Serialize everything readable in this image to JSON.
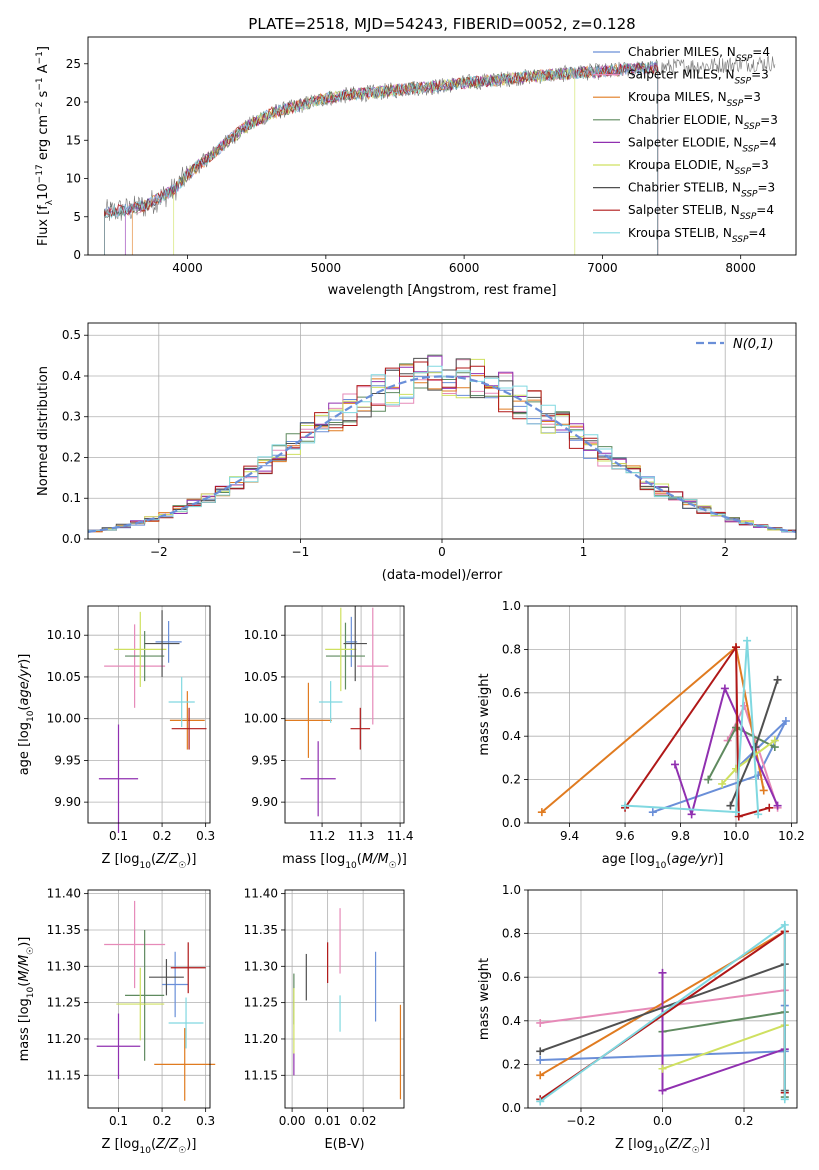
{
  "figure_title": "PLATE=2518, MJD=54243, FIBERID=0052, z=0.128",
  "model_names": [
    "Chabrier MILES",
    "Salpeter MILES",
    "Kroupa MILES",
    "Chabrier ELODIE",
    "Salpeter ELODIE",
    "Kroupa ELODIE",
    "Chabrier STELIB",
    "Salpeter STELIB",
    "Kroupa STELIB"
  ],
  "model_colors": [
    "#6a8fd8",
    "#e68ab8",
    "#e07b20",
    "#5f8a5f",
    "#9030b0",
    "#cfe060",
    "#505050",
    "#b01818",
    "#80d8e0"
  ],
  "n_ssp": [
    4,
    3,
    3,
    3,
    4,
    3,
    3,
    4,
    4
  ],
  "chart_data": [
    {
      "id": "spectrum",
      "type": "line",
      "title": "PLATE=2518, MJD=54243, FIBERID=0052, z=0.128",
      "xlabel": "wavelength [Angstrom, rest frame]",
      "ylabel": "Flux [f_λ 10^-17 erg cm^-2 s^-1 A^-1]",
      "xlim": [
        3280,
        8400
      ],
      "ylim": [
        0,
        28.5
      ],
      "xticks": [
        4000,
        5000,
        6000,
        7000,
        8000
      ],
      "yticks": [
        0,
        5,
        10,
        15,
        20,
        25
      ],
      "grid": false,
      "legend_position": "top-right",
      "legend": [
        "Chabrier MILES, N_SSP=4",
        "Salpeter MILES, N_SSP=3",
        "Kroupa MILES, N_SSP=3",
        "Chabrier ELODIE, N_SSP=3",
        "Salpeter ELODIE, N_SSP=4",
        "Kroupa ELODIE, N_SSP=3",
        "Chabrier STELIB, N_SSP=3",
        "Salpeter STELIB, N_SSP=4",
        "Kroupa STELIB, N_SSP=4"
      ],
      "data_series": {
        "name": "data",
        "color": "#777777",
        "x": [
          3400,
          3500,
          3600,
          3700,
          3800,
          3900,
          4000,
          4100,
          4200,
          4300,
          4400,
          4500,
          4600,
          4800,
          5000,
          5200,
          5400,
          5600,
          5800,
          6000,
          6200,
          6400,
          6600,
          6800,
          7000,
          7200,
          7400,
          7600,
          7800,
          8000,
          8200
        ],
        "y": [
          5.5,
          5.8,
          6.0,
          6.5,
          7.5,
          8.5,
          10.5,
          12.0,
          13.5,
          15.0,
          16.5,
          17.5,
          18.5,
          19.5,
          20.5,
          21.0,
          21.3,
          21.8,
          22.0,
          22.5,
          22.8,
          23.2,
          23.5,
          23.8,
          24.0,
          24.3,
          24.5,
          24.7,
          24.8,
          25.0,
          25.1
        ]
      },
      "model_coverage": [
        [
          3400,
          7400
        ],
        [
          3400,
          7400
        ],
        [
          3600,
          7400
        ],
        [
          3400,
          7400
        ],
        [
          3550,
          7400
        ],
        [
          3900,
          6800
        ],
        [
          3400,
          7400
        ],
        [
          3400,
          7400
        ],
        [
          3400,
          7400
        ]
      ]
    },
    {
      "id": "residuals",
      "type": "histogram",
      "xlabel": "(data-model)/error",
      "ylabel": "Normed distribution",
      "xlim": [
        -2.5,
        2.5
      ],
      "ylim": [
        0,
        0.53
      ],
      "xticks": [
        -2,
        -1,
        0,
        1,
        2
      ],
      "yticks": [
        0.0,
        0.1,
        0.2,
        0.3,
        0.4,
        0.5
      ],
      "grid": true,
      "legend_position": "top-right",
      "reference_curve": {
        "name": "N(0,1)",
        "style": "dashed",
        "color": "#6a8fd8"
      },
      "bins": 50
    },
    {
      "id": "age-vs-Z",
      "type": "errorbar",
      "xlabel": "Z [log10(Z/Z☉)]",
      "ylabel": "age [log10(age/yr)]",
      "xlim": [
        0.03,
        0.31
      ],
      "ylim": [
        9.875,
        10.135
      ],
      "xticks": [
        0.1,
        0.2,
        0.3
      ],
      "yticks": [
        9.9,
        9.95,
        10.0,
        10.05,
        10.1
      ],
      "grid": true,
      "points": [
        {
          "x": 0.215,
          "xerr": 0.03,
          "y": 10.092,
          "yerr": 0.025
        },
        {
          "x": 0.137,
          "xerr": 0.07,
          "y": 10.063,
          "yerr": 0.05
        },
        {
          "x": 0.258,
          "xerr": 0.04,
          "y": 9.998,
          "yerr": 0.035
        },
        {
          "x": 0.16,
          "xerr": 0.045,
          "y": 10.075,
          "yerr": 0.03
        },
        {
          "x": 0.1,
          "xerr": 0.045,
          "y": 9.928,
          "yerr": 0.065
        },
        {
          "x": 0.15,
          "xerr": 0.06,
          "y": 10.083,
          "yerr": 0.045
        },
        {
          "x": 0.2,
          "xerr": 0.04,
          "y": 10.09,
          "yerr": 0.04
        },
        {
          "x": 0.262,
          "xerr": 0.04,
          "y": 9.988,
          "yerr": 0.025
        },
        {
          "x": 0.245,
          "xerr": 0.03,
          "y": 10.02,
          "yerr": 0.03
        }
      ]
    },
    {
      "id": "age-vs-mass",
      "type": "errorbar",
      "xlabel": "mass [log10(M/M☉)]",
      "ylabel": "",
      "xlim": [
        11.105,
        11.41
      ],
      "ylim": [
        9.875,
        10.135
      ],
      "xticks": [
        11.2,
        11.3,
        11.4
      ],
      "yticks": [
        9.9,
        9.95,
        10.0,
        10.05,
        10.1
      ],
      "grid": true,
      "points": [
        {
          "x": 11.275,
          "xerr": 0.015,
          "y": 10.092,
          "yerr": 0.03
        },
        {
          "x": 11.33,
          "xerr": 0.04,
          "y": 10.063,
          "yerr": 0.07
        },
        {
          "x": 11.165,
          "xerr": 0.06,
          "y": 9.998,
          "yerr": 0.045
        },
        {
          "x": 11.26,
          "xerr": 0.05,
          "y": 10.075,
          "yerr": 0.04
        },
        {
          "x": 11.19,
          "xerr": 0.045,
          "y": 9.928,
          "yerr": 0.045
        },
        {
          "x": 11.248,
          "xerr": 0.04,
          "y": 10.083,
          "yerr": 0.05
        },
        {
          "x": 11.285,
          "xerr": 0.03,
          "y": 10.09,
          "yerr": 0.045
        },
        {
          "x": 11.298,
          "xerr": 0.025,
          "y": 9.988,
          "yerr": 0.025
        },
        {
          "x": 11.222,
          "xerr": 0.03,
          "y": 10.02,
          "yerr": 0.025
        }
      ]
    },
    {
      "id": "weight-vs-age",
      "type": "line",
      "xlabel": "age [log10(age/yr)]",
      "ylabel": "mass weight",
      "xlim": [
        9.25,
        10.22
      ],
      "ylim": [
        0,
        1.0
      ],
      "xticks": [
        9.4,
        9.6,
        9.8,
        10.0,
        10.2
      ],
      "yticks": [
        0.0,
        0.2,
        0.4,
        0.6,
        0.8,
        1.0
      ],
      "grid": true,
      "series": [
        {
          "x": [
            9.7,
            10.08,
            10.18,
            10.0
          ],
          "y": [
            0.05,
            0.22,
            0.47,
            0.25
          ]
        },
        {
          "x": [
            9.97,
            10.03,
            10.15
          ],
          "y": [
            0.38,
            0.54,
            0.07
          ]
        },
        {
          "x": [
            9.3,
            10.0,
            10.1
          ],
          "y": [
            0.05,
            0.81,
            0.15
          ]
        },
        {
          "x": [
            9.9,
            10.0,
            10.14
          ],
          "y": [
            0.2,
            0.44,
            0.35
          ]
        },
        {
          "x": [
            9.78,
            9.84,
            9.96,
            10.15
          ],
          "y": [
            0.27,
            0.04,
            0.62,
            0.08
          ]
        },
        {
          "x": [
            9.95,
            10.0,
            10.14
          ],
          "y": [
            0.18,
            0.25,
            0.38
          ]
        },
        {
          "x": [
            9.98,
            10.07,
            10.15
          ],
          "y": [
            0.08,
            0.35,
            0.66
          ]
        },
        {
          "x": [
            9.6,
            10.0,
            10.01,
            10.12
          ],
          "y": [
            0.07,
            0.81,
            0.03,
            0.07
          ]
        },
        {
          "x": [
            9.6,
            10.0,
            10.04,
            10.08
          ],
          "y": [
            0.08,
            0.05,
            0.84,
            0.04
          ]
        }
      ]
    },
    {
      "id": "mass-vs-Z",
      "type": "errorbar",
      "xlabel": "Z [log10(Z/Z☉)]",
      "ylabel": "mass [log10(M/M☉)]",
      "xlim": [
        0.03,
        0.31
      ],
      "ylim": [
        11.105,
        11.405
      ],
      "xticks": [
        0.1,
        0.2,
        0.3
      ],
      "yticks": [
        11.15,
        11.2,
        11.25,
        11.3,
        11.35,
        11.4
      ],
      "grid": true,
      "points": [
        {
          "x": 0.23,
          "xerr": 0.03,
          "y": 11.275,
          "yerr": 0.045
        },
        {
          "x": 0.137,
          "xerr": 0.07,
          "y": 11.33,
          "yerr": 0.06
        },
        {
          "x": 0.252,
          "xerr": 0.07,
          "y": 11.165,
          "yerr": 0.05
        },
        {
          "x": 0.16,
          "xerr": 0.045,
          "y": 11.26,
          "yerr": 0.09
        },
        {
          "x": 0.1,
          "xerr": 0.05,
          "y": 11.19,
          "yerr": 0.045
        },
        {
          "x": 0.15,
          "xerr": 0.055,
          "y": 11.248,
          "yerr": 0.05
        },
        {
          "x": 0.21,
          "xerr": 0.04,
          "y": 11.285,
          "yerr": 0.025
        },
        {
          "x": 0.26,
          "xerr": 0.04,
          "y": 11.298,
          "yerr": 0.035
        },
        {
          "x": 0.255,
          "xerr": 0.04,
          "y": 11.222,
          "yerr": 0.035
        }
      ]
    },
    {
      "id": "mass-vs-EBV",
      "type": "errorbar",
      "xlabel": "E(B-V)",
      "ylabel": "",
      "xlim": [
        -0.002,
        0.0315
      ],
      "ylim": [
        11.105,
        11.405
      ],
      "xticks": [
        0.0,
        0.01,
        0.02
      ],
      "yticks": [
        11.15,
        11.2,
        11.25,
        11.3,
        11.35,
        11.4
      ],
      "grid": true,
      "points": [
        {
          "x": 0.0235,
          "xerr": 0,
          "y": 11.272,
          "yerr": 0.048
        },
        {
          "x": 0.0135,
          "xerr": 0,
          "y": 11.335,
          "yerr": 0.045
        },
        {
          "x": 0.0305,
          "xerr": 0,
          "y": 11.182,
          "yerr": 0.065
        },
        {
          "x": 0.0005,
          "xerr": 0,
          "y": 11.255,
          "yerr": 0.035
        },
        {
          "x": 0.0005,
          "xerr": 0,
          "y": 11.165,
          "yerr": 0.015
        },
        {
          "x": 0.0005,
          "xerr": 0,
          "y": 11.225,
          "yerr": 0.045
        },
        {
          "x": 0.004,
          "xerr": 0,
          "y": 11.285,
          "yerr": 0.032
        },
        {
          "x": 0.01,
          "xerr": 0,
          "y": 11.305,
          "yerr": 0.028
        },
        {
          "x": 0.0135,
          "xerr": 0,
          "y": 11.235,
          "yerr": 0.025
        }
      ]
    },
    {
      "id": "weight-vs-Z",
      "type": "line",
      "xlabel": "Z [log10(Z/Z☉)]",
      "ylabel": "mass weight",
      "xlim": [
        -0.33,
        0.33
      ],
      "ylim": [
        0,
        1.0
      ],
      "xticks": [
        -0.2,
        0.0,
        0.2
      ],
      "yticks": [
        0.0,
        0.2,
        0.4,
        0.6,
        0.8,
        1.0
      ],
      "grid": true,
      "series": [
        {
          "x": [
            -0.3,
            0.3,
            0.3
          ],
          "y": [
            0.22,
            0.26,
            0.47
          ]
        },
        {
          "x": [
            -0.3,
            0.3
          ],
          "y": [
            0.39,
            0.54
          ]
        },
        {
          "x": [
            -0.3,
            0.3
          ],
          "y": [
            0.15,
            0.81
          ]
        },
        {
          "x": [
            0.0,
            0.3,
            0.3
          ],
          "y": [
            0.35,
            0.44,
            0.05
          ]
        },
        {
          "x": [
            0.0,
            0.0,
            0.3
          ],
          "y": [
            0.62,
            0.08,
            0.27
          ]
        },
        {
          "x": [
            0.0,
            0.3
          ],
          "y": [
            0.18,
            0.38
          ]
        },
        {
          "x": [
            -0.3,
            0.3,
            0.3
          ],
          "y": [
            0.26,
            0.66,
            0.08
          ]
        },
        {
          "x": [
            -0.3,
            0.3,
            0.3
          ],
          "y": [
            0.04,
            0.81,
            0.07
          ]
        },
        {
          "x": [
            -0.3,
            0.3,
            0.3
          ],
          "y": [
            0.03,
            0.84,
            0.04
          ]
        }
      ]
    }
  ]
}
